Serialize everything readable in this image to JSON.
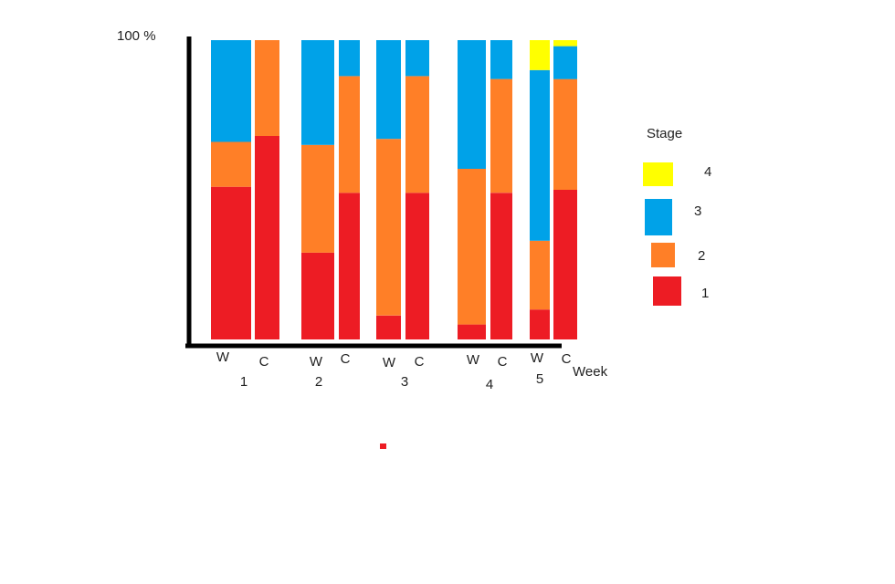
{
  "chart_data": {
    "type": "bar",
    "stacked": true,
    "ylim": [
      0,
      100
    ],
    "y_top_label": "100 %",
    "xlabel": "Week",
    "legend_title": "Stage",
    "legend_position": "right",
    "weeks": [
      "1",
      "2",
      "3",
      "4",
      "5"
    ],
    "bar_labels": [
      "W",
      "C"
    ],
    "stages": [
      {
        "name": "4",
        "color": "#ffff00"
      },
      {
        "name": "3",
        "color": "#00a2e8"
      },
      {
        "name": "2",
        "color": "#ff7f27"
      },
      {
        "name": "1",
        "color": "#ed1c24"
      }
    ],
    "bars": [
      {
        "week": "1",
        "label": "W",
        "values": {
          "1": 51,
          "2": 15,
          "3": 34,
          "4": 0
        }
      },
      {
        "week": "1",
        "label": "C",
        "values": {
          "1": 68,
          "2": 32,
          "3": 0,
          "4": 0
        }
      },
      {
        "week": "2",
        "label": "W",
        "values": {
          "1": 29,
          "2": 36,
          "3": 35,
          "4": 0
        }
      },
      {
        "week": "2",
        "label": "C",
        "values": {
          "1": 49,
          "2": 39,
          "3": 12,
          "4": 0
        }
      },
      {
        "week": "3",
        "label": "W",
        "values": {
          "1": 8,
          "2": 59,
          "3": 33,
          "4": 0
        }
      },
      {
        "week": "3",
        "label": "C",
        "values": {
          "1": 49,
          "2": 39,
          "3": 12,
          "4": 0
        }
      },
      {
        "week": "4",
        "label": "W",
        "values": {
          "1": 5,
          "2": 52,
          "3": 43,
          "4": 0
        }
      },
      {
        "week": "4",
        "label": "C",
        "values": {
          "1": 49,
          "2": 38,
          "3": 13,
          "4": 0
        }
      },
      {
        "week": "5",
        "label": "W",
        "values": {
          "1": 10,
          "2": 23,
          "3": 57,
          "4": 10
        }
      },
      {
        "week": "5",
        "label": "C",
        "values": {
          "1": 50,
          "2": 37,
          "3": 11,
          "4": 2
        }
      }
    ]
  }
}
